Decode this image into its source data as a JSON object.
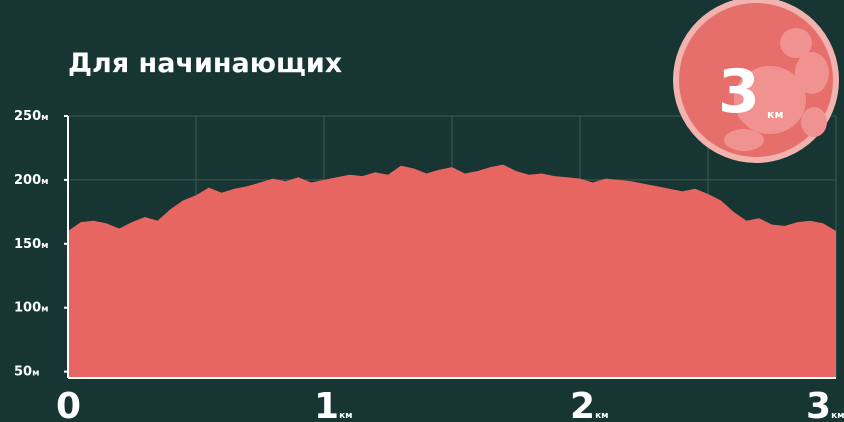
{
  "colors": {
    "background": "#163533",
    "fill": "#e86661",
    "grid": "#3f5a55",
    "badge": "#e66e6b",
    "badge_ring": "#f2b2ae",
    "badge_blob": "#f09390",
    "text": "#ffffff"
  },
  "badge": {
    "value": "3",
    "unit": "км",
    "icon": "footprint-icon"
  },
  "chart_data": {
    "type": "area",
    "title": "Для начинающих",
    "xlabel": "",
    "ylabel": "",
    "xlim": [
      0,
      3
    ],
    "ylim": [
      45,
      250
    ],
    "grid": true,
    "legend": "none",
    "y_ticks": [
      {
        "value": 250,
        "num": "250",
        "unit": "м"
      },
      {
        "value": 200,
        "num": "200",
        "unit": "м"
      },
      {
        "value": 150,
        "num": "150",
        "unit": "м"
      },
      {
        "value": 100,
        "num": "100",
        "unit": "м"
      },
      {
        "value": 50,
        "num": "50",
        "unit": "м"
      }
    ],
    "x_ticks": [
      {
        "value": 0,
        "num": "0",
        "unit": ""
      },
      {
        "value": 1,
        "num": "1",
        "unit": "км"
      },
      {
        "value": 2,
        "num": "2",
        "unit": "км"
      },
      {
        "value": 3,
        "num": "3",
        "unit": "км"
      }
    ],
    "series": [
      {
        "x": [
          0,
          0.05,
          0.1,
          0.15,
          0.2,
          0.25,
          0.3,
          0.35,
          0.4,
          0.45,
          0.5,
          0.55,
          0.6,
          0.65,
          0.7,
          0.75,
          0.8,
          0.85,
          0.9,
          0.95,
          1.0,
          1.05,
          1.1,
          1.15,
          1.2,
          1.25,
          1.3,
          1.35,
          1.4,
          1.45,
          1.5,
          1.55,
          1.6,
          1.65,
          1.7,
          1.75,
          1.8,
          1.85,
          1.9,
          1.95,
          2.0,
          2.05,
          2.1,
          2.15,
          2.2,
          2.25,
          2.3,
          2.35,
          2.4,
          2.45,
          2.5,
          2.55,
          2.6,
          2.65,
          2.7,
          2.75,
          2.8,
          2.85,
          2.9,
          2.95,
          3.0
        ],
        "y": [
          160,
          167,
          168,
          166,
          162,
          167,
          171,
          168,
          177,
          184,
          188,
          194,
          190,
          193,
          195,
          198,
          201,
          199,
          202,
          198,
          200,
          202,
          204,
          203,
          206,
          204,
          211,
          209,
          205,
          208,
          210,
          205,
          207,
          210,
          212,
          207,
          204,
          205,
          203,
          202,
          201,
          198,
          201,
          200,
          199,
          197,
          195,
          193,
          191,
          193,
          189,
          184,
          175,
          168,
          170,
          165,
          164,
          167,
          168,
          166,
          160
        ]
      }
    ]
  }
}
